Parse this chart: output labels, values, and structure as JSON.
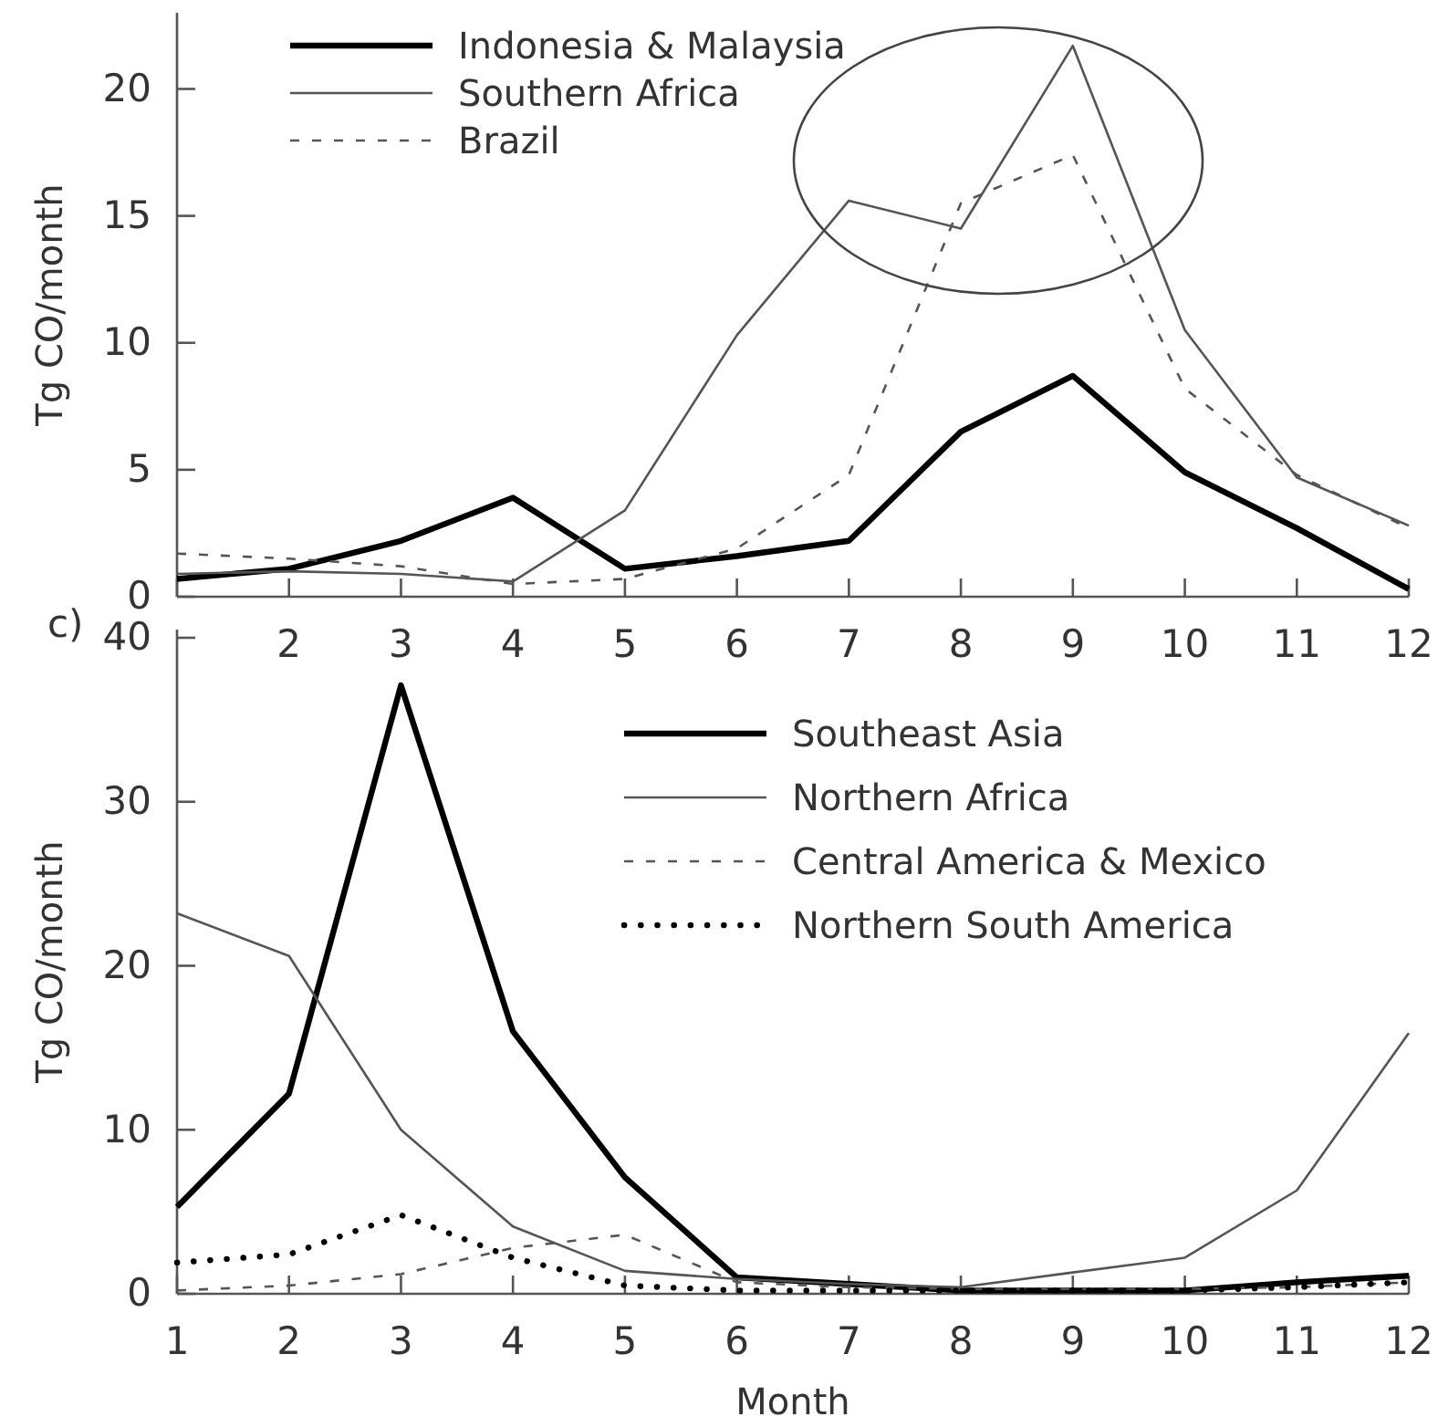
{
  "chart_data": [
    {
      "type": "line",
      "ylabel": "Tg CO/month",
      "xlim": [
        1,
        12
      ],
      "xticks": [
        {
          "value": 1,
          "label": null
        },
        2,
        3,
        4,
        5,
        6,
        7,
        8,
        9,
        10,
        11,
        12
      ],
      "ylim": [
        0,
        23
      ],
      "yticks": [
        0,
        5,
        10,
        15,
        20
      ],
      "legend": "top left",
      "grid": false,
      "x": [
        1,
        2,
        3,
        4,
        5,
        6,
        7,
        8,
        9,
        10,
        11,
        12
      ],
      "series": [
        {
          "name": "Indonesia & Malaysia",
          "color": "#000000",
          "line_style": "solid",
          "values": [
            0.7,
            1.1,
            2.2,
            3.9,
            1.1,
            1.6,
            2.2,
            6.5,
            8.7,
            4.9,
            2.7,
            0.3
          ]
        },
        {
          "name": "Southern Africa",
          "color": "#555555",
          "line_style": "solid",
          "values": [
            0.9,
            1.0,
            0.9,
            0.6,
            3.4,
            10.3,
            15.6,
            14.5,
            21.7,
            10.5,
            4.7,
            2.8
          ]
        },
        {
          "name": "Brazil",
          "color": "#555555",
          "line_style": "dashed",
          "values": [
            1.7,
            1.5,
            1.2,
            0.5,
            0.7,
            1.9,
            4.8,
            15.5,
            17.4,
            8.2,
            4.8,
            2.7
          ]
        }
      ]
    },
    {
      "type": "line",
      "ylabel": "Tg CO/month",
      "xlabel": "Month",
      "annotations": [
        "c)"
      ],
      "xlim": [
        1,
        12
      ],
      "xticks": [
        1,
        2,
        3,
        4,
        5,
        6,
        7,
        8,
        9,
        10,
        11,
        12
      ],
      "ylim": [
        0,
        40.5
      ],
      "yticks": [
        0,
        10,
        20,
        30,
        40
      ],
      "legend": "top right",
      "grid": false,
      "x": [
        1,
        2,
        3,
        4,
        5,
        6,
        7,
        8,
        9,
        10,
        11,
        12
      ],
      "series": [
        {
          "name": "Southeast Asia",
          "color": "#000000",
          "line_style": "solid",
          "values": [
            5.3,
            12.2,
            37.1,
            16.0,
            7.1,
            1.0,
            0.6,
            0.2,
            0.2,
            0.2,
            0.7,
            1.1
          ]
        },
        {
          "name": "Northern Africa",
          "color": "#555555",
          "line_style": "solid",
          "values": [
            23.2,
            20.6,
            10.0,
            4.1,
            1.4,
            0.9,
            0.6,
            0.4,
            1.3,
            2.2,
            6.3,
            15.9
          ]
        },
        {
          "name": "Central America & Mexico",
          "color": "#555555",
          "line_style": "dashed",
          "values": [
            0.2,
            0.5,
            1.2,
            2.8,
            3.6,
            0.7,
            0.4,
            0.3,
            0.3,
            0.3,
            0.4,
            0.7
          ]
        },
        {
          "name": "Northern South America",
          "color": "#000000",
          "line_style": "dotted",
          "values": [
            1.9,
            2.4,
            4.8,
            2.2,
            0.5,
            0.2,
            0.2,
            0.2,
            0.2,
            0.2,
            0.4,
            0.7
          ]
        }
      ]
    }
  ]
}
